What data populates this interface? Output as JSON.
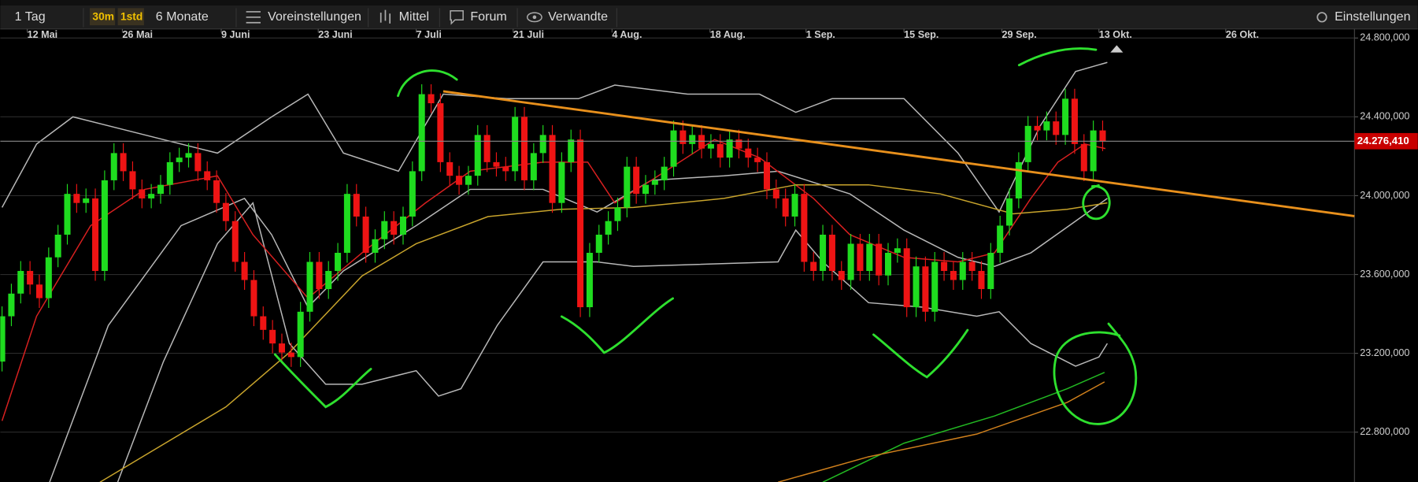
{
  "toolbar": {
    "period": "1 Tag",
    "badges": [
      "30m",
      "1std"
    ],
    "range": "6 Monate",
    "items": [
      "Voreinstellungen",
      "Mittel",
      "Forum",
      "Verwandte"
    ],
    "settings": "Einstellungen"
  },
  "chart_data": {
    "type": "candlestick",
    "up_color": "#1fdc1f",
    "down_color": "#ee1414",
    "grid": true,
    "xlim": [
      0,
      145
    ],
    "xticks": [
      {
        "value": 2.7,
        "label": "12 Mai"
      },
      {
        "value": 12.9,
        "label": "26 Mai"
      },
      {
        "value": 23.5,
        "label": "9 Juni"
      },
      {
        "value": 33.9,
        "label": "23 Juni"
      },
      {
        "value": 44.4,
        "label": "7 Juli"
      },
      {
        "value": 54.8,
        "label": "21 Juli"
      },
      {
        "value": 65.4,
        "label": "4 Aug."
      },
      {
        "value": 75.9,
        "label": "18 Aug."
      },
      {
        "value": 86.2,
        "label": "1 Sep."
      },
      {
        "value": 96.7,
        "label": "15 Sep."
      },
      {
        "value": 107.2,
        "label": "29 Sep."
      },
      {
        "value": 117.6,
        "label": "13 Okt."
      },
      {
        "value": 131.2,
        "label": "26 Okt."
      }
    ],
    "ylim": [
      22547,
      24846
    ],
    "yticks": [
      {
        "value": 24800,
        "label": "24.800,000"
      },
      {
        "value": 24400,
        "label": "24.400,000"
      },
      {
        "value": 24000,
        "label": "24.000,000"
      },
      {
        "value": 23600,
        "label": "23.600,000"
      },
      {
        "value": 23200,
        "label": "23.200,000"
      },
      {
        "value": 22800,
        "label": "22.800,000"
      }
    ],
    "last_price": {
      "value": 24276.41,
      "label": "24.276,410"
    },
    "open": [
      23158,
      23388,
      23503,
      23618,
      23549,
      23480,
      23687,
      23802,
      24009,
      23963,
      23986,
      23618,
      24078,
      24216,
      24124,
      24032,
      23986,
      24009,
      24055,
      24170,
      24193,
      24216,
      24124,
      24078,
      23963,
      23871,
      23664,
      23572,
      23388,
      23319,
      23250,
      23204,
      23181,
      23411,
      23664,
      23526,
      23618,
      23710,
      24009,
      23894,
      23710,
      23779,
      23871,
      23802,
      23894,
      24124,
      24515,
      24469,
      24170,
      24101,
      24055,
      24101,
      24308,
      24170,
      24147,
      24124,
      24400,
      24078,
      24216,
      24308,
      23963,
      24170,
      24285,
      23434,
      23710,
      23802,
      23871,
      23940,
      24147,
      24009,
      24055,
      24078,
      24147,
      24331,
      24262,
      24308,
      24239,
      24262,
      24193,
      24285,
      24239,
      24193,
      24170,
      24032,
      23986,
      23894,
      24009,
      23664,
      23618,
      23802,
      23618,
      23572,
      23756,
      23618,
      23756,
      23595,
      23710,
      23733,
      23434,
      23641,
      23411,
      23664,
      23618,
      23572,
      23664,
      23618,
      23526,
      23710,
      23848,
      23986,
      24170,
      24354,
      24331,
      24377,
      24308,
      24492,
      24262,
      24124,
      24331
    ],
    "high": [
      23438,
      23553,
      23668,
      23668,
      23599,
      23737,
      23852,
      24059,
      24059,
      24036,
      24036,
      24128,
      24266,
      24266,
      24174,
      24082,
      24059,
      24105,
      24220,
      24243,
      24266,
      24266,
      24174,
      24128,
      24013,
      23921,
      23714,
      23622,
      23438,
      23369,
      23300,
      23254,
      23461,
      23714,
      23714,
      23668,
      23760,
      24059,
      24059,
      23944,
      23829,
      23921,
      23921,
      23944,
      24174,
      24565,
      24565,
      24519,
      24220,
      24151,
      24151,
      24358,
      24358,
      24220,
      24197,
      24450,
      24450,
      24266,
      24358,
      24358,
      24220,
      24335,
      24335,
      23760,
      23852,
      23921,
      23990,
      24197,
      24197,
      24105,
      24128,
      24197,
      24381,
      24381,
      24358,
      24358,
      24312,
      24312,
      24335,
      24335,
      24289,
      24243,
      24220,
      24082,
      24036,
      24059,
      24059,
      23714,
      23852,
      23852,
      23668,
      23806,
      23806,
      23806,
      23806,
      23760,
      23783,
      23783,
      23691,
      23691,
      23714,
      23714,
      23668,
      23714,
      23714,
      23668,
      23760,
      23898,
      24036,
      24220,
      24404,
      24404,
      24427,
      24427,
      24542,
      24542,
      24312,
      24381,
      24381
    ],
    "low": [
      23108,
      23338,
      23453,
      23499,
      23430,
      23430,
      23637,
      23752,
      23913,
      23913,
      23568,
      23568,
      24028,
      24074,
      23982,
      23936,
      23936,
      23959,
      24005,
      24120,
      24143,
      24074,
      24028,
      23913,
      23821,
      23614,
      23522,
      23338,
      23269,
      23200,
      23154,
      23131,
      23131,
      23361,
      23476,
      23476,
      23568,
      23660,
      23844,
      23660,
      23660,
      23729,
      23752,
      23752,
      23844,
      24074,
      24419,
      24120,
      24051,
      24005,
      24005,
      24051,
      24120,
      24097,
      24074,
      24074,
      24028,
      24028,
      24166,
      23913,
      23913,
      24120,
      23384,
      23384,
      23660,
      23752,
      23821,
      23890,
      23959,
      23959,
      24005,
      24028,
      24097,
      24212,
      24212,
      24189,
      24189,
      24143,
      24143,
      24189,
      24143,
      24120,
      23982,
      23936,
      23844,
      23844,
      23614,
      23568,
      23568,
      23568,
      23522,
      23522,
      23568,
      23568,
      23545,
      23545,
      23660,
      23384,
      23384,
      23361,
      23361,
      23568,
      23522,
      23522,
      23568,
      23476,
      23476,
      23660,
      23798,
      23936,
      24120,
      24281,
      24281,
      24258,
      24258,
      24212,
      24074,
      24074,
      24226
    ],
    "close": [
      23388,
      23503,
      23618,
      23549,
      23480,
      23687,
      23802,
      24009,
      23963,
      23986,
      23618,
      24078,
      24216,
      24124,
      24032,
      23986,
      24009,
      24055,
      24170,
      24193,
      24216,
      24124,
      24078,
      23963,
      23871,
      23664,
      23572,
      23388,
      23319,
      23250,
      23204,
      23181,
      23411,
      23664,
      23526,
      23618,
      23710,
      24009,
      23894,
      23710,
      23779,
      23871,
      23802,
      23894,
      24124,
      24515,
      24469,
      24170,
      24101,
      24055,
      24101,
      24308,
      24170,
      24147,
      24124,
      24400,
      24078,
      24216,
      24308,
      23963,
      24170,
      24285,
      23434,
      23710,
      23802,
      23871,
      23940,
      24147,
      24009,
      24055,
      24078,
      24147,
      24331,
      24262,
      24308,
      24239,
      24262,
      24193,
      24285,
      24239,
      24193,
      24170,
      24032,
      23986,
      23894,
      24009,
      23664,
      23618,
      23802,
      23618,
      23572,
      23756,
      23618,
      23756,
      23595,
      23710,
      23733,
      23434,
      23641,
      23411,
      23664,
      23618,
      23572,
      23664,
      23618,
      23526,
      23710,
      23848,
      23986,
      24170,
      24354,
      24331,
      24377,
      24308,
      24492,
      24262,
      24124,
      24331,
      24276.41
    ],
    "overlays": [
      {
        "color": "#b8b8b8",
        "x": [
          0,
          3.7,
          7.6,
          15.3,
          23.1,
          28.9,
          32.8,
          36.6,
          42.5,
          47.3,
          54.1,
          61.8,
          65.7,
          73.5,
          81.2,
          85.1,
          89,
          96.7,
          102.5,
          106.9,
          111.3,
          115.1,
          118.5
        ],
        "values": [
          23940,
          24262,
          24400,
          24308,
          24216,
          24400,
          24515,
          24216,
          24124,
          24515,
          24492,
          24492,
          24561,
          24515,
          24515,
          24423,
          24492,
          24492,
          24216,
          23917,
          24354,
          24630,
          24676
        ]
      },
      {
        "color": "#b8b8b8",
        "x": [
          12.4,
          17.3,
          23.1,
          26.9,
          30.8,
          34.7,
          38.6,
          44.4,
          46.8,
          49.2,
          53.1,
          58,
          63.8,
          67.7,
          83.2,
          85.1,
          88,
          92.9,
          98.7,
          104.5,
          106.9,
          110.3,
          115.1,
          117.6,
          118.5
        ],
        "values": [
          22546,
          23158,
          23756,
          23963,
          23250,
          23043,
          23043,
          23112,
          22983,
          23020,
          23342,
          23664,
          23664,
          23641,
          23664,
          23825,
          23664,
          23457,
          23434,
          23388,
          23411,
          23250,
          23135,
          23181,
          23250
        ]
      },
      {
        "color": "#b8b8b8",
        "x": [
          5.1,
          11.4,
          19.2,
          26,
          28.9,
          32.8,
          36.6,
          44.4,
          50.2,
          58,
          63.8,
          69.6,
          77.4,
          83.2,
          90.9,
          96.7,
          102.5,
          106.4,
          110.3,
          115.1,
          118.5
        ],
        "values": [
          22546,
          23342,
          23848,
          23986,
          23802,
          23434,
          23618,
          23848,
          24032,
          24032,
          23917,
          24078,
          24101,
          24124,
          24009,
          23825,
          23687,
          23641,
          23710,
          23871,
          23986
        ]
      },
      {
        "color": "#d82020",
        "x": [
          0,
          3.7,
          9.5,
          15.3,
          23.1,
          26.9,
          32.8,
          38.6,
          45.4,
          50.2,
          58,
          62.8,
          65.7,
          69.6,
          76.4,
          81.2,
          87,
          90.9,
          96.7,
          102.5,
          106.4,
          110.3,
          113.2,
          116.1,
          118.3
        ],
        "values": [
          22857,
          23388,
          23848,
          24032,
          24101,
          23802,
          23480,
          23710,
          23963,
          24124,
          24170,
          24170,
          23963,
          24078,
          24285,
          24193,
          23986,
          23802,
          23687,
          23664,
          23710,
          23986,
          24170,
          24262,
          24239
        ]
      },
      {
        "color": "#c8a42c",
        "x": [
          10.5,
          24,
          30.8,
          38.6,
          44.4,
          52.1,
          59.9,
          67.7,
          77.4,
          85.1,
          92.9,
          100.6,
          108.4,
          114.2,
          118.5
        ],
        "values": [
          22546,
          22928,
          23204,
          23593,
          23756,
          23894,
          23931,
          23940,
          23986,
          24055,
          24055,
          24009,
          23908,
          23931,
          23963
        ]
      },
      {
        "color": "#22b822",
        "x": [
          88,
          96.7,
          106.4,
          114.2,
          118.2
        ],
        "values": [
          22546,
          22744,
          22882,
          23020,
          23103
        ]
      },
      {
        "color": "#d0801c",
        "x": [
          83.2,
          92.9,
          104.5,
          114.2,
          118.2
        ],
        "values": [
          22546,
          22675,
          22790,
          22951,
          23055
        ]
      }
    ]
  }
}
